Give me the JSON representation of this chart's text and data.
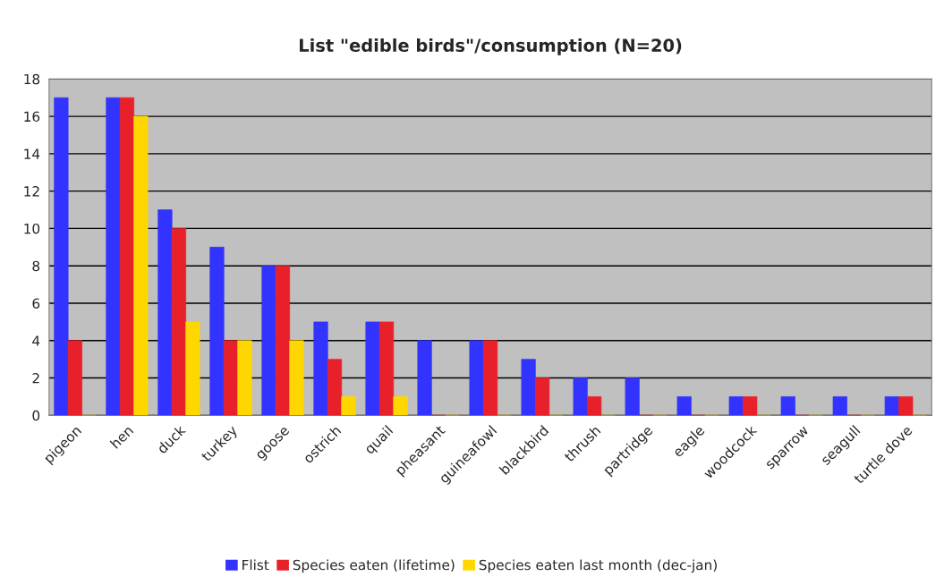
{
  "chart_data": {
    "type": "bar",
    "title": "List \"edible birds\"/consumption (N=20)",
    "categories": [
      "pigeon",
      "hen",
      "duck",
      "turkey",
      "goose",
      "ostrich",
      "quail",
      "pheasant",
      "guineafowl",
      "blackbird",
      "thrush",
      "partridge",
      "eagle",
      "woodcock",
      "sparrow",
      "seagull",
      "turtle dove"
    ],
    "series": [
      {
        "name": "Flist",
        "color": "#3333ff",
        "values": [
          17,
          17,
          11,
          9,
          8,
          5,
          5,
          4,
          4,
          3,
          2,
          2,
          1,
          1,
          1,
          1,
          1
        ]
      },
      {
        "name": "Species eaten (lifetime)",
        "color": "#e8202a",
        "values": [
          4,
          17,
          10,
          4,
          8,
          3,
          5,
          0,
          4,
          2,
          1,
          0,
          0,
          1,
          0,
          0,
          1
        ]
      },
      {
        "name": "Species eaten last month (dec-jan)",
        "color": "#ffd700",
        "values": [
          0,
          16,
          5,
          4,
          4,
          1,
          1,
          0,
          0,
          0,
          0,
          0,
          0,
          0,
          0,
          0,
          0
        ]
      }
    ],
    "ylim": [
      0,
      18
    ],
    "yticks": [
      0,
      2,
      4,
      6,
      8,
      10,
      12,
      14,
      16,
      18
    ],
    "grid": "y",
    "legend": "bottom"
  }
}
